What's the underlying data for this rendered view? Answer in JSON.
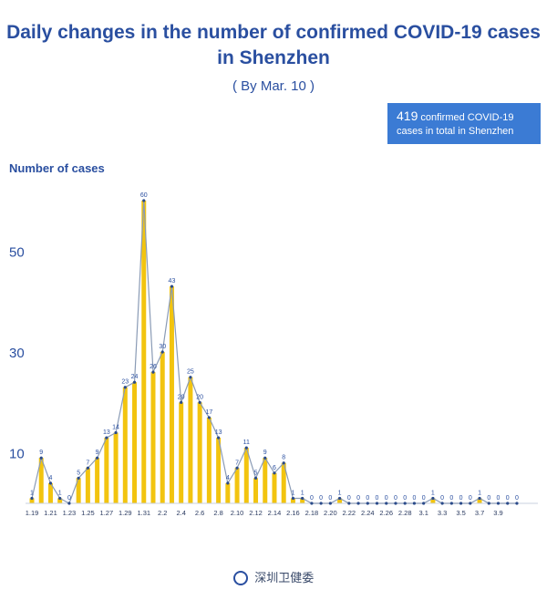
{
  "header": {
    "title_line1": "Daily changes in the number of confirmed COVID-19 cases",
    "title_line2": "in Shenzhen",
    "subtitle": "( By Mar. 10 )"
  },
  "badge": {
    "number": "419",
    "text1": "confirmed COVID-19",
    "text2": "cases in total in Shenzhen"
  },
  "footer": {
    "org": "深圳卫健委"
  },
  "chart_data": {
    "type": "bar",
    "ylabel": "Number of cases",
    "ylim": [
      0,
      60
    ],
    "yticks": [
      10,
      30,
      50
    ],
    "values": [
      1,
      9,
      4,
      1,
      0,
      5,
      7,
      9,
      13,
      14,
      23,
      24,
      60,
      26,
      30,
      43,
      20,
      25,
      20,
      17,
      13,
      4,
      7,
      11,
      5,
      9,
      6,
      8,
      1,
      1,
      0,
      0,
      0,
      1,
      0,
      0,
      0,
      0,
      0,
      0,
      0,
      0,
      0,
      1,
      0,
      0,
      0,
      0,
      1,
      0,
      0,
      0,
      0
    ],
    "tick_labels": [
      {
        "i": 0,
        "t": "1.19"
      },
      {
        "i": 2,
        "t": "1.21"
      },
      {
        "i": 4,
        "t": "1.23"
      },
      {
        "i": 6,
        "t": "1.25"
      },
      {
        "i": 8,
        "t": "1.27"
      },
      {
        "i": 10,
        "t": "1.29"
      },
      {
        "i": 12,
        "t": "1.31"
      },
      {
        "i": 14,
        "t": "2.2"
      },
      {
        "i": 16,
        "t": "2.4"
      },
      {
        "i": 18,
        "t": "2.6"
      },
      {
        "i": 20,
        "t": "2.8"
      },
      {
        "i": 22,
        "t": "2.10"
      },
      {
        "i": 24,
        "t": "2.12"
      },
      {
        "i": 26,
        "t": "2.14"
      },
      {
        "i": 28,
        "t": "2.16"
      },
      {
        "i": 30,
        "t": "2.18"
      },
      {
        "i": 32,
        "t": "2.20"
      },
      {
        "i": 34,
        "t": "2.22"
      },
      {
        "i": 36,
        "t": "2.24"
      },
      {
        "i": 38,
        "t": "2.26"
      },
      {
        "i": 40,
        "t": "2.28"
      },
      {
        "i": 42,
        "t": "3.1"
      },
      {
        "i": 44,
        "t": "3.3"
      },
      {
        "i": 46,
        "t": "3.5"
      },
      {
        "i": 48,
        "t": "3.7"
      },
      {
        "i": 50,
        "t": "3.9"
      }
    ],
    "bar_color": "#f2c40f",
    "line_color": "#8a9bb5",
    "marker_color": "#2a4a8a",
    "label_color": "#2a4fa0"
  }
}
